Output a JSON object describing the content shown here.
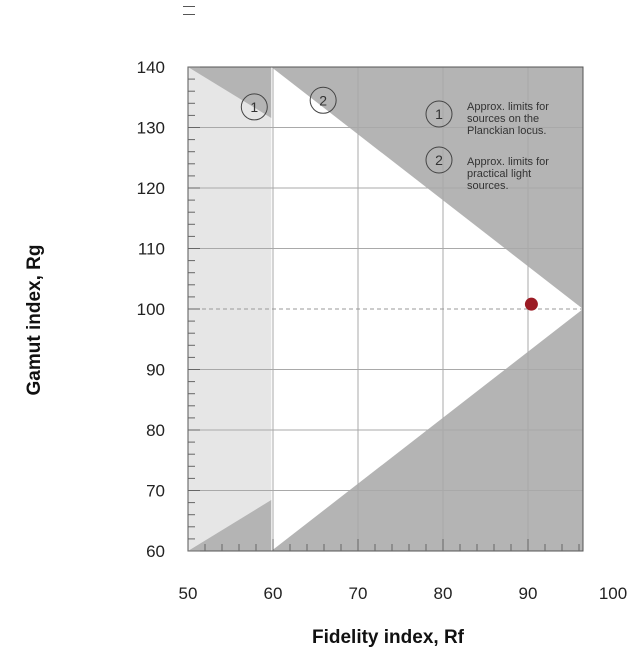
{
  "chart_data": {
    "type": "scatter",
    "title": "",
    "xlabel": "Fidelity index, Rf",
    "ylabel": "Gamut index, Rg",
    "xlim": [
      50,
      100
    ],
    "ylim": [
      60,
      140
    ],
    "x_ticks": [
      "50",
      "60",
      "70",
      "80",
      "90",
      "100"
    ],
    "y_ticks": [
      "60",
      "70",
      "80",
      "90",
      "100",
      "110",
      "120",
      "130",
      "140"
    ],
    "grid": true,
    "reference_line_y": 100,
    "point": {
      "x": 90.4,
      "y": 100.8
    },
    "regions": {
      "dark_boundary": [
        [
          59.8,
          140
        ],
        [
          100,
          100
        ],
        [
          59.8,
          60
        ]
      ],
      "light_boundary": [
        [
          50,
          140
        ],
        [
          100,
          100
        ],
        [
          50,
          60
        ]
      ]
    },
    "region_markers": [
      {
        "label": "1",
        "x": 57.8,
        "y": 133.4
      },
      {
        "label": "2",
        "x": 65.9,
        "y": 134.5
      }
    ],
    "legend": [
      {
        "label": "1",
        "text_lines": [
          "Approx. limits for",
          "sources on the",
          "Planckian locus."
        ]
      },
      {
        "label": "2",
        "text_lines": [
          "Approx. limits for",
          "practical light",
          "sources."
        ]
      }
    ],
    "colors": {
      "dark_gray": "#b4b4b4",
      "light_gray": "#e6e6e6",
      "plot_bg": "#ffffff",
      "grid": "#a9a9a9",
      "point": "#9b1b24",
      "dashed": "#999999"
    }
  }
}
